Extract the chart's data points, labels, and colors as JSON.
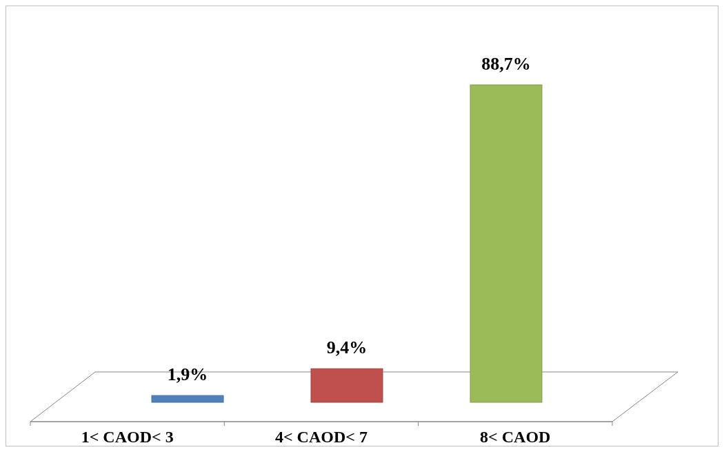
{
  "chart_data": {
    "type": "bar",
    "categories": [
      "1< CAOD< 3",
      "4< CAOD< 7",
      "8< CAOD"
    ],
    "values": [
      1.9,
      9.4,
      88.7
    ],
    "colors": [
      "#4f81bd",
      "#c0504d",
      "#9bbb59"
    ],
    "value_labels": [
      "1,9%",
      "9,4%",
      "88,7%"
    ]
  }
}
